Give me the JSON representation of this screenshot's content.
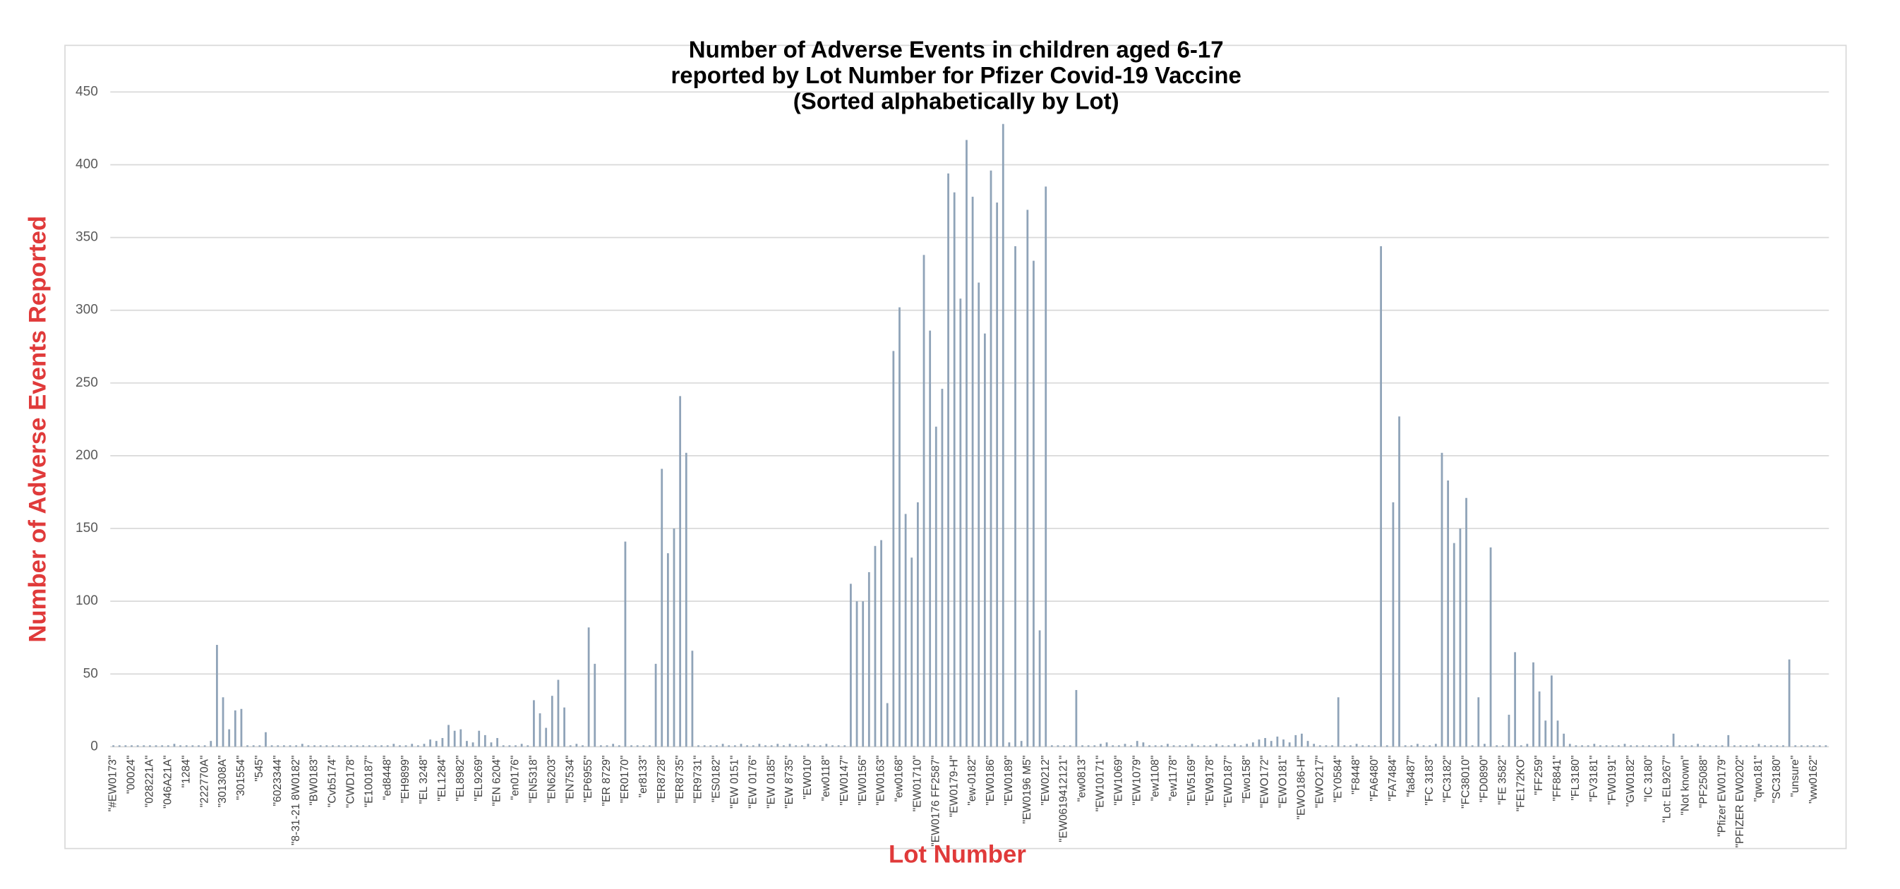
{
  "chart_data": {
    "type": "bar",
    "title": [
      "Number of Adverse Events in children aged 6-17",
      "reported by Lot Number for Pfizer Covid-19 Vaccine",
      "(Sorted alphabetically by Lot)"
    ],
    "x_label": "Lot Number",
    "y_label": "Number of Adverse Events Reported",
    "color": "#8fa3b8",
    "grid": true,
    "ylim": [
      0,
      450
    ],
    "yticks": [
      0,
      50,
      100,
      150,
      200,
      250,
      300,
      350,
      400,
      450
    ],
    "categories": [
      "\"#EW0173\"",
      null,
      null,
      "\"00024\"",
      null,
      null,
      "\"028221A\"",
      null,
      null,
      "\"046A21A\"",
      null,
      null,
      "\"1284\"",
      null,
      null,
      "\"222770A\"",
      null,
      null,
      "\"301308A\"",
      null,
      null,
      "\"301554\"",
      null,
      null,
      "\"545\"",
      null,
      null,
      "\"6023344\"",
      null,
      null,
      "\"8-31-21 8W0182\"",
      null,
      null,
      "\"BW0183\"",
      null,
      null,
      "\"Cvb5174\"",
      null,
      null,
      "\"CWD178\"",
      null,
      null,
      "\"E100187\"",
      null,
      null,
      "\"ed8448\"",
      null,
      null,
      "\"EH9899\"",
      null,
      null,
      "\"EL 3248\"",
      null,
      null,
      "\"EL1284\"",
      null,
      null,
      "\"EL8982\"",
      null,
      null,
      "\"EL9269\"",
      null,
      null,
      "\"EN 6204\"",
      null,
      null,
      "\"en0176\"",
      null,
      null,
      "\"EN5318\"",
      null,
      null,
      "\"EN6203\"",
      null,
      null,
      "\"EN7534\"",
      null,
      null,
      "\"EP6955\"",
      null,
      null,
      "\"ER 8729\"",
      null,
      null,
      "\"ER0170\"",
      null,
      null,
      "\"er8133\"",
      null,
      null,
      "\"ER8728\"",
      null,
      null,
      "\"ER8735\"",
      null,
      null,
      "\"ER9731\"",
      null,
      null,
      "\"ES0182\"",
      null,
      null,
      "\"EW 0151\"",
      null,
      null,
      "\"EW 0176\"",
      null,
      null,
      "\"EW 0185\"",
      null,
      null,
      "\"EW 8735\"",
      null,
      null,
      "\"EW010\"",
      null,
      null,
      "\"ew0118\"",
      null,
      null,
      "\"EW0147\"",
      null,
      null,
      "\"EW0156\"",
      null,
      null,
      "\"EW0163\"",
      null,
      null,
      "\"ew0168\"",
      null,
      null,
      "\"EW01710\"",
      null,
      null,
      "\"EW0176 FF2587\"",
      null,
      null,
      "\"EW0179-H\"",
      null,
      null,
      "\"ew-0182\"",
      null,
      null,
      "\"EW0186\"",
      null,
      null,
      "\"EW0189\"",
      null,
      null,
      "\"EW0196 M5\"",
      null,
      null,
      "\"EW0212\"",
      null,
      null,
      "\"EW0619412121\"",
      null,
      null,
      "\"ew0813\"",
      null,
      null,
      "\"EW10171\"",
      null,
      null,
      "\"EW1069\"",
      null,
      null,
      "\"EW1079\"",
      null,
      null,
      "\"ew1108\"",
      null,
      null,
      "\"ew1178\"",
      null,
      null,
      "\"EW5169\"",
      null,
      null,
      "\"EW9178\"",
      null,
      null,
      "\"EWD187\"",
      null,
      null,
      "\"Ewo158\"",
      null,
      null,
      "\"EWO172\"",
      null,
      null,
      "\"EWO181\"",
      null,
      null,
      "\"EWO186-H\"",
      null,
      null,
      "\"EWO217\"",
      null,
      null,
      "\"EY0584\"",
      null,
      null,
      "\"F8448\"",
      null,
      null,
      "\"FA6480\"",
      null,
      null,
      "\"FA7484\"",
      null,
      null,
      "\"fa8487\"",
      null,
      null,
      "\"FC 3183\"",
      null,
      null,
      "\"FC3182\"",
      null,
      null,
      "\"FC38010\"",
      null,
      null,
      "\"FD0890\"",
      null,
      null,
      "\"FE 3582\"",
      null,
      null,
      "\"FE172KO\"",
      null,
      null,
      "\"FF259\"",
      null,
      null,
      "\"FF8841\"",
      null,
      null,
      "\"FL3180\"",
      null,
      null,
      "\"FV3181\"",
      null,
      null,
      "\"FW0191\"",
      null,
      null,
      "\"GW0182\"",
      null,
      null,
      "\"IC 3180\"",
      null,
      null,
      "\"Lot: EL9267\"",
      null,
      null,
      "\"Not known\"",
      null,
      null,
      "\"PF25088\"",
      null,
      null,
      "\"Pfizer EW0179\"",
      null,
      null,
      "\"PFIZER EW0202\"",
      null,
      null,
      "\"qwo181\"",
      null,
      null,
      "\"SC3180\"",
      null,
      null,
      "\"unsure\"",
      null,
      null,
      "\"ww0162\"",
      null,
      null
    ],
    "values": [
      1,
      1,
      1,
      1,
      1,
      1,
      1,
      1,
      1,
      1,
      2,
      1,
      1,
      1,
      1,
      1,
      4,
      70,
      34,
      12,
      25,
      26,
      1,
      1,
      1,
      10,
      1,
      1,
      1,
      1,
      1,
      2,
      1,
      1,
      1,
      1,
      1,
      1,
      1,
      1,
      1,
      1,
      1,
      1,
      1,
      1,
      2,
      1,
      1,
      2,
      1,
      2,
      5,
      4,
      6,
      15,
      11,
      12,
      4,
      3,
      11,
      8,
      3,
      6,
      1,
      1,
      1,
      2,
      1,
      32,
      23,
      13,
      35,
      46,
      27,
      1,
      2,
      1,
      82,
      57,
      1,
      1,
      2,
      1,
      141,
      1,
      1,
      1,
      1,
      57,
      191,
      133,
      150,
      241,
      202,
      66,
      1,
      1,
      1,
      1,
      2,
      1,
      1,
      2,
      1,
      1,
      2,
      1,
      1,
      2,
      1,
      2,
      1,
      1,
      2,
      1,
      1,
      2,
      1,
      1,
      1,
      112,
      100,
      100,
      120,
      138,
      142,
      30,
      272,
      302,
      160,
      130,
      168,
      338,
      286,
      220,
      246,
      394,
      381,
      308,
      417,
      378,
      319,
      284,
      396,
      374,
      428,
      3,
      344,
      4,
      369,
      334,
      80,
      385,
      1,
      1,
      1,
      1,
      39,
      1,
      1,
      1,
      2,
      3,
      1,
      1,
      2,
      1,
      4,
      3,
      1,
      1,
      1,
      2,
      1,
      1,
      1,
      2,
      1,
      1,
      1,
      2,
      1,
      1,
      2,
      1,
      2,
      3,
      5,
      6,
      4,
      7,
      5,
      3,
      8,
      9,
      4,
      2,
      1,
      1,
      1,
      34,
      1,
      1,
      2,
      1,
      1,
      1,
      344,
      1,
      168,
      227,
      1,
      1,
      2,
      1,
      1,
      2,
      202,
      183,
      140,
      150,
      171,
      1,
      34,
      2,
      137,
      1,
      1,
      22,
      65,
      1,
      2,
      58,
      38,
      18,
      49,
      18,
      9,
      2,
      1,
      1,
      1,
      2,
      1,
      1,
      1,
      1,
      2,
      1,
      1,
      1,
      1,
      1,
      1,
      1,
      9,
      1,
      1,
      1,
      2,
      1,
      1,
      1,
      1,
      8,
      1,
      1,
      1,
      1,
      2,
      1,
      1,
      1,
      1,
      60,
      1,
      1,
      1,
      1,
      1,
      1
    ]
  }
}
